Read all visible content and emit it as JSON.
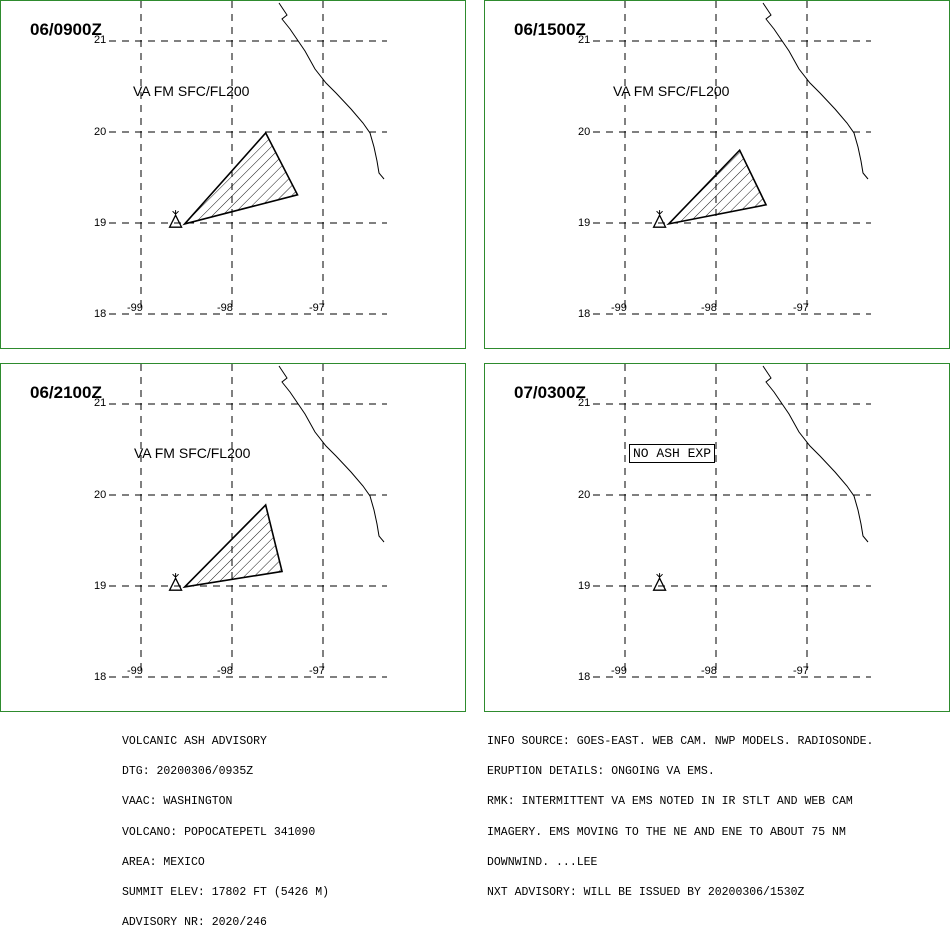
{
  "panels": [
    {
      "id": "p1",
      "title": "06/0900Z",
      "label": "VA FM SFC/FL200",
      "no_ash": null,
      "lat_labels": [
        "21",
        "20",
        "19",
        "18"
      ],
      "lon_labels": [
        "-99",
        "-98",
        "-97"
      ],
      "ash_polygon": [
        [
          -98.52,
          18.99
        ],
        [
          -97.63,
          19.99
        ],
        [
          -97.28,
          19.31
        ]
      ]
    },
    {
      "id": "p2",
      "title": "06/1500Z",
      "label": "VA FM SFC/FL200",
      "no_ash": null,
      "lat_labels": [
        "21",
        "20",
        "19",
        "18"
      ],
      "lon_labels": [
        "-99",
        "-98",
        "-97"
      ],
      "ash_polygon": [
        [
          -98.52,
          18.99
        ],
        [
          -97.74,
          19.8
        ],
        [
          -97.45,
          19.2
        ]
      ]
    },
    {
      "id": "p3",
      "title": "06/2100Z",
      "label": "VA FM SFC/FL200",
      "no_ash": null,
      "lat_labels": [
        "21",
        "20",
        "19",
        "18"
      ],
      "lon_labels": [
        "-99",
        "-98",
        "-97"
      ],
      "ash_polygon": [
        [
          -98.52,
          18.99
        ],
        [
          -97.63,
          19.89
        ],
        [
          -97.45,
          19.16
        ]
      ]
    },
    {
      "id": "p4",
      "title": "07/0300Z",
      "label": null,
      "no_ash": "NO ASH EXP",
      "lat_labels": [
        "21",
        "20",
        "19",
        "18"
      ],
      "lon_labels": [
        "-99",
        "-98",
        "-97"
      ],
      "ash_polygon": null
    }
  ],
  "advisory_left": [
    "VOLCANIC ASH ADVISORY",
    "DTG: 20200306/0935Z",
    "VAAC: WASHINGTON",
    "VOLCANO: POPOCATEPETL 341090",
    "AREA: MEXICO",
    "SUMMIT ELEV: 17802 FT (5426 M)",
    "ADVISORY NR: 2020/246"
  ],
  "advisory_right": [
    "INFO SOURCE: GOES-EAST. WEB CAM. NWP MODELS. RADIOSONDE.",
    "ERUPTION DETAILS: ONGOING VA EMS.",
    "RMK: INTERMITTENT VA EMS NOTED IN IR STLT AND WEB CAM",
    "IMAGERY. EMS MOVING TO THE NE AND ENE TO ABOUT 75 NM",
    "DOWNWIND. ...LEE",
    "NXT ADVISORY: WILL BE ISSUED BY 20200306/1530Z"
  ],
  "colors": {
    "panel_border": "#2e8b2e",
    "ink": "#000000"
  },
  "icons": {
    "volcano": "volcano-triangle-icon"
  }
}
